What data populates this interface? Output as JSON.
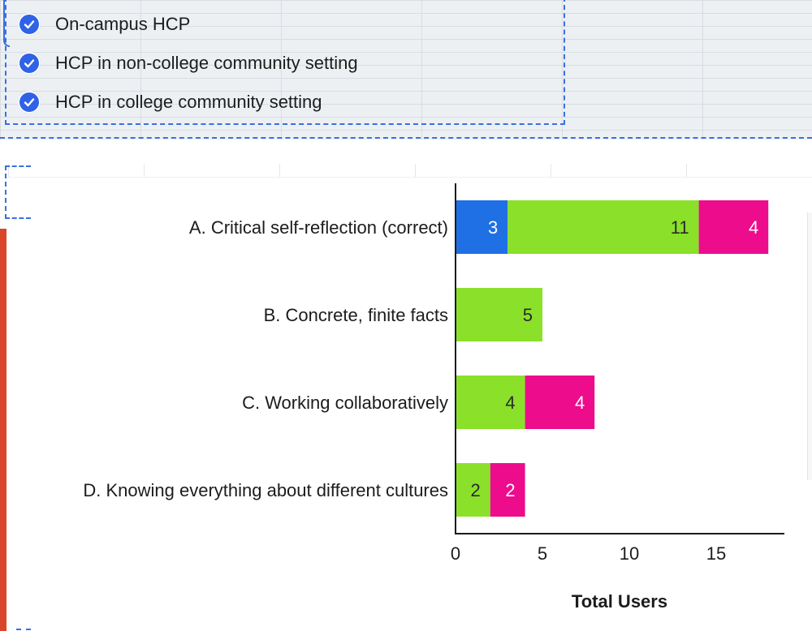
{
  "legend": {
    "items": [
      {
        "label": "On-campus HCP",
        "checked": true
      },
      {
        "label": "HCP in non-college community setting",
        "checked": true
      },
      {
        "label": "HCP in college community setting",
        "checked": true
      }
    ]
  },
  "chart_data": {
    "type": "bar",
    "orientation": "horizontal",
    "stacked": true,
    "categories": [
      "A. Critical self-reflection (correct)",
      "B. Concrete, finite facts",
      "C. Working collaboratively",
      "D. Knowing everything about different cultures"
    ],
    "series": [
      {
        "color": "#1f6fe5",
        "values": [
          3,
          0,
          0,
          0
        ]
      },
      {
        "color": "#8be02a",
        "values": [
          11,
          5,
          4,
          2
        ]
      },
      {
        "color": "#ec0c8c",
        "values": [
          4,
          0,
          4,
          2
        ]
      }
    ],
    "xlabel": "Total Users",
    "xlim": [
      0,
      19
    ],
    "xticks": [
      0,
      5,
      10,
      15
    ],
    "grid": false
  }
}
